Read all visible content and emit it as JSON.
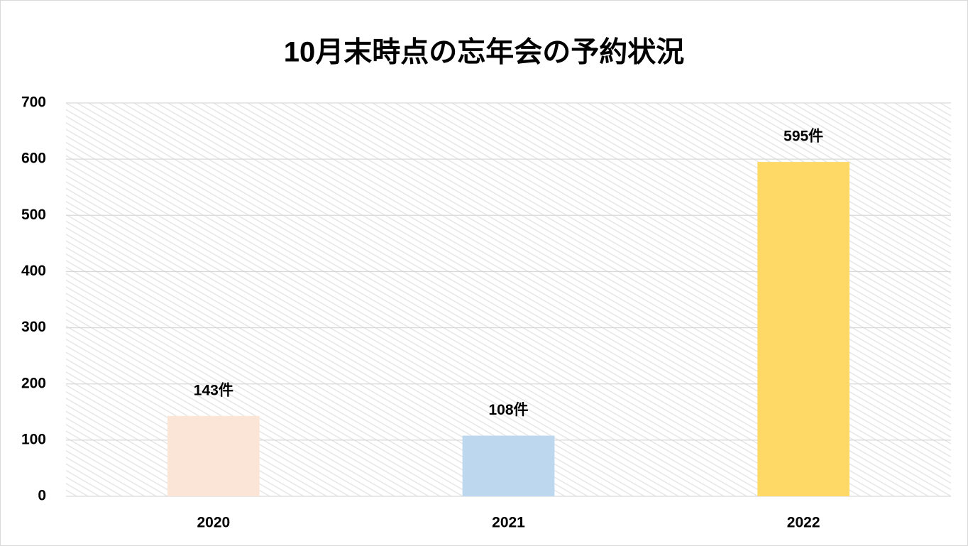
{
  "chart_data": {
    "type": "bar",
    "title": "10月末時点の忘年会の予約状況",
    "categories": [
      "2020",
      "2021",
      "2022"
    ],
    "values": [
      143,
      108,
      595
    ],
    "value_labels": [
      "143件",
      "108件",
      "595件"
    ],
    "colors": [
      "#fbe5d6",
      "#bdd7ee",
      "#ffd966"
    ],
    "ylim": [
      0,
      700
    ],
    "yticks": [
      0,
      100,
      200,
      300,
      400,
      500,
      600,
      700
    ],
    "grid": true
  }
}
